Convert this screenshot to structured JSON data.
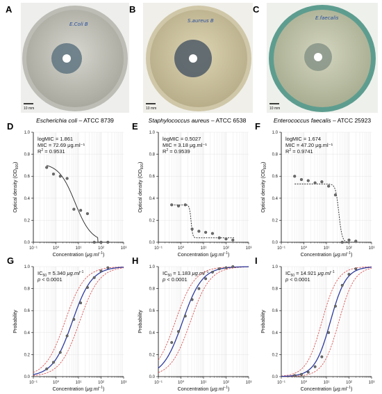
{
  "colors": {
    "curve_blue": "#2c3a9e",
    "ci_red": "#d94343",
    "point_gray": "#6b6b6b",
    "fit_black": "#222222",
    "grid": "#dcdcdc"
  },
  "photos": [
    {
      "letter": "A",
      "scale_label": "10 mm",
      "plate_label": "E.Coli B",
      "caption_italic": "Escherichia  coli",
      "caption_rest": " – ATCC 8739",
      "plate_color": "#c9c8bf",
      "agar": "#bfbfb3",
      "zone": "#6b7e85"
    },
    {
      "letter": "B",
      "scale_label": "10 mm",
      "plate_label": "S.aureus B",
      "caption_italic": "Staphylococcus aureus",
      "caption_rest": " – ATCC 6538",
      "plate_color": "#d7cfae",
      "agar": "#cdc39d",
      "zone": "#55606a"
    },
    {
      "letter": "C",
      "scale_label": "10 mm",
      "plate_label": "E.faecalis",
      "caption_italic": "Enterococcus faecalis",
      "caption_rest": " – ATCC 25923",
      "plate_color": "#5d9d8f",
      "agar": "#c2c7a7",
      "zone": "#7d8c82"
    }
  ],
  "labels": {
    "od_y": "Optical density (OD",
    "od_y_sub": "600",
    "od_y_end": ")",
    "prob_y": "Probability",
    "x": "Concentration (",
    "x_mu": "μg.ml",
    "x_sup": "−1",
    "x_end": ")",
    "ic": "IC",
    "ic_sub": "50",
    "p_italic": "p",
    "p_rest": " < 0.0001",
    "mu_unit": " μg.ml",
    "mu_sup": "−1"
  },
  "chart_data": [
    {
      "panel": "D",
      "type": "scatter",
      "logMIC": "logMIC = 1.861",
      "MIC": "MIC = 72.69 μg.ml⁻¹",
      "R2_label": "R",
      "R2_value": " = 0.9531",
      "xlim": [
        0.1,
        1000
      ],
      "xscale": "log",
      "ylim": [
        0,
        1.0
      ],
      "yticks": [
        "0.0",
        "0.2",
        "0.4",
        "0.6",
        "0.8",
        "1.0"
      ],
      "xticks": [
        "10⁻¹",
        "10⁰",
        "10¹",
        "10²",
        "10³"
      ],
      "points": [
        [
          0.39,
          0.68
        ],
        [
          0.78,
          0.62
        ],
        [
          1.56,
          0.6
        ],
        [
          3.13,
          0.58
        ],
        [
          6.25,
          0.3
        ],
        [
          12.5,
          0.29
        ],
        [
          25,
          0.26
        ],
        [
          50,
          0.0
        ],
        [
          100,
          0.0
        ],
        [
          200,
          0.0
        ]
      ],
      "fit": {
        "top": 0.72,
        "bottom": 0.0,
        "logIC": 0.85,
        "hill": 1.2,
        "clip_at_zero_x": 72.69
      }
    },
    {
      "panel": "E",
      "type": "scatter",
      "logMIC": "logMIC = 0.5027",
      "MIC": "MIC = 3.18 μg.ml⁻¹",
      "R2_label": "R",
      "R2_value": " = 0.9539",
      "xlim": [
        0.1,
        1000
      ],
      "xscale": "log",
      "ylim": [
        0,
        1.0
      ],
      "yticks": [
        "0.0",
        "0.2",
        "0.4",
        "0.6",
        "0.8",
        "1.0"
      ],
      "xticks": [
        "10⁻¹",
        "10⁰",
        "10¹",
        "10²",
        "10³"
      ],
      "points": [
        [
          0.39,
          0.34
        ],
        [
          0.78,
          0.33
        ],
        [
          1.56,
          0.34
        ],
        [
          3.13,
          0.12
        ],
        [
          6.25,
          0.1
        ],
        [
          12.5,
          0.09
        ],
        [
          25,
          0.08
        ],
        [
          50,
          0.04
        ],
        [
          100,
          0.03
        ],
        [
          200,
          0.02
        ]
      ],
      "fit": {
        "top": 0.34,
        "bottom": 0.04,
        "logIC": 0.45,
        "hill": 12
      }
    },
    {
      "panel": "F",
      "type": "scatter",
      "logMIC": "logMIC = 1.674",
      "MIC": "MIC = 47.20 μg.ml⁻¹",
      "R2_label": "R",
      "R2_value": " = 0.9741",
      "xlim": [
        0.1,
        1000
      ],
      "xscale": "log",
      "ylim": [
        0,
        1.0
      ],
      "yticks": [
        "0.0",
        "0.2",
        "0.4",
        "0.6",
        "0.8",
        "1.0"
      ],
      "xticks": [
        "10⁻¹",
        "10⁰",
        "10¹",
        "10²",
        "10³"
      ],
      "points": [
        [
          0.39,
          0.6
        ],
        [
          0.78,
          0.57
        ],
        [
          1.56,
          0.56
        ],
        [
          3.13,
          0.54
        ],
        [
          6.25,
          0.55
        ],
        [
          12.5,
          0.51
        ],
        [
          25,
          0.43
        ],
        [
          50,
          0.0
        ],
        [
          100,
          0.02
        ],
        [
          200,
          0.01
        ]
      ],
      "fit": {
        "top": 0.53,
        "bottom": 0.0,
        "logIC": 1.55,
        "hill": 6
      }
    },
    {
      "panel": "G",
      "type": "line",
      "ic50_value": " = 5.340",
      "xlim": [
        0.1,
        1000
      ],
      "xscale": "log",
      "ylim": [
        0,
        1.0
      ],
      "yticks": [
        "0.0",
        "0.2",
        "0.4",
        "0.6",
        "0.8",
        "1.0"
      ],
      "xticks": [
        "10⁻¹",
        "10⁰",
        "10¹",
        "10²",
        "10³"
      ],
      "points": [
        [
          0.39,
          0.07
        ],
        [
          0.78,
          0.13
        ],
        [
          1.56,
          0.22
        ],
        [
          3.13,
          0.37
        ],
        [
          6.25,
          0.52
        ],
        [
          12.5,
          0.67
        ],
        [
          25,
          0.81
        ],
        [
          50,
          0.9
        ],
        [
          100,
          0.96
        ],
        [
          200,
          0.99
        ]
      ],
      "curve": {
        "logIC": 0.7276,
        "slope": 1.0
      },
      "ci_lower": {
        "logIC": 1.05,
        "slope": 1.0
      },
      "ci_upper": {
        "logIC": 0.4,
        "slope": 1.0
      }
    },
    {
      "panel": "H",
      "type": "line",
      "ic50_value": " = 1.183",
      "xlim": [
        0.1,
        1000
      ],
      "xscale": "log",
      "ylim": [
        0,
        1.0
      ],
      "yticks": [
        "0.0",
        "0.2",
        "0.4",
        "0.6",
        "0.8",
        "1.0"
      ],
      "xticks": [
        "10⁻¹",
        "10⁰",
        "10¹",
        "10²",
        "10³"
      ],
      "points": [
        [
          0.39,
          0.31
        ],
        [
          0.78,
          0.41
        ],
        [
          1.56,
          0.55
        ],
        [
          3.13,
          0.7
        ],
        [
          6.25,
          0.8
        ],
        [
          12.5,
          0.89
        ],
        [
          25,
          0.95
        ],
        [
          50,
          0.98
        ],
        [
          100,
          0.99
        ],
        [
          200,
          1.0
        ]
      ],
      "curve": {
        "logIC": 0.073,
        "slope": 1.0
      },
      "ci_lower": {
        "logIC": 0.42,
        "slope": 1.0
      },
      "ci_upper": {
        "logIC": -0.25,
        "slope": 1.0
      }
    },
    {
      "panel": "I",
      "type": "line",
      "ic50_value": " = 14.921",
      "xlim": [
        0.1,
        1000
      ],
      "xscale": "log",
      "ylim": [
        0,
        1.0
      ],
      "yticks": [
        "0.0",
        "0.2",
        "0.4",
        "0.6",
        "0.8",
        "1.0"
      ],
      "xticks": [
        "10⁻¹",
        "10⁰",
        "10¹",
        "10²",
        "10³"
      ],
      "points": [
        [
          0.39,
          0.01
        ],
        [
          0.78,
          0.02
        ],
        [
          1.56,
          0.04
        ],
        [
          3.13,
          0.09
        ],
        [
          6.25,
          0.18
        ],
        [
          12.5,
          0.4
        ],
        [
          25,
          0.64
        ],
        [
          50,
          0.83
        ],
        [
          100,
          0.93
        ],
        [
          200,
          0.98
        ]
      ],
      "curve": {
        "logIC": 1.1738,
        "slope": 1.25
      },
      "ci_lower": {
        "logIC": 1.55,
        "slope": 1.25
      },
      "ci_upper": {
        "logIC": 0.8,
        "slope": 1.25
      }
    }
  ]
}
